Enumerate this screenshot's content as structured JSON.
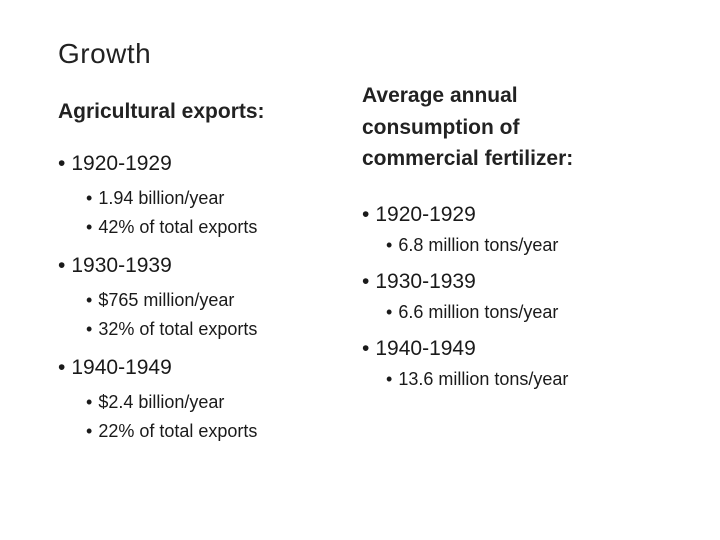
{
  "title": "Growth",
  "left": {
    "heading": "Agricultural exports:",
    "groups": [
      {
        "period": "1920-1929",
        "items": [
          "1.94 billion/year",
          "42% of total exports"
        ]
      },
      {
        "period": "1930-1939",
        "items": [
          "$765 million/year",
          "32% of total exports"
        ]
      },
      {
        "period": "1940-1949",
        "items": [
          "$2.4 billion/year",
          "22% of total exports"
        ]
      }
    ]
  },
  "right": {
    "heading_lines": [
      "Average annual",
      "consumption of",
      "commercial fertilizer:"
    ],
    "groups": [
      {
        "period": "1920-1929",
        "items": [
          "6.8 million tons/year"
        ]
      },
      {
        "period": "1930-1939",
        "items": [
          "6.6 million tons/year"
        ]
      },
      {
        "period": "1940-1949",
        "items": [
          "13.6 million tons/year"
        ]
      }
    ]
  },
  "bullet": "•"
}
